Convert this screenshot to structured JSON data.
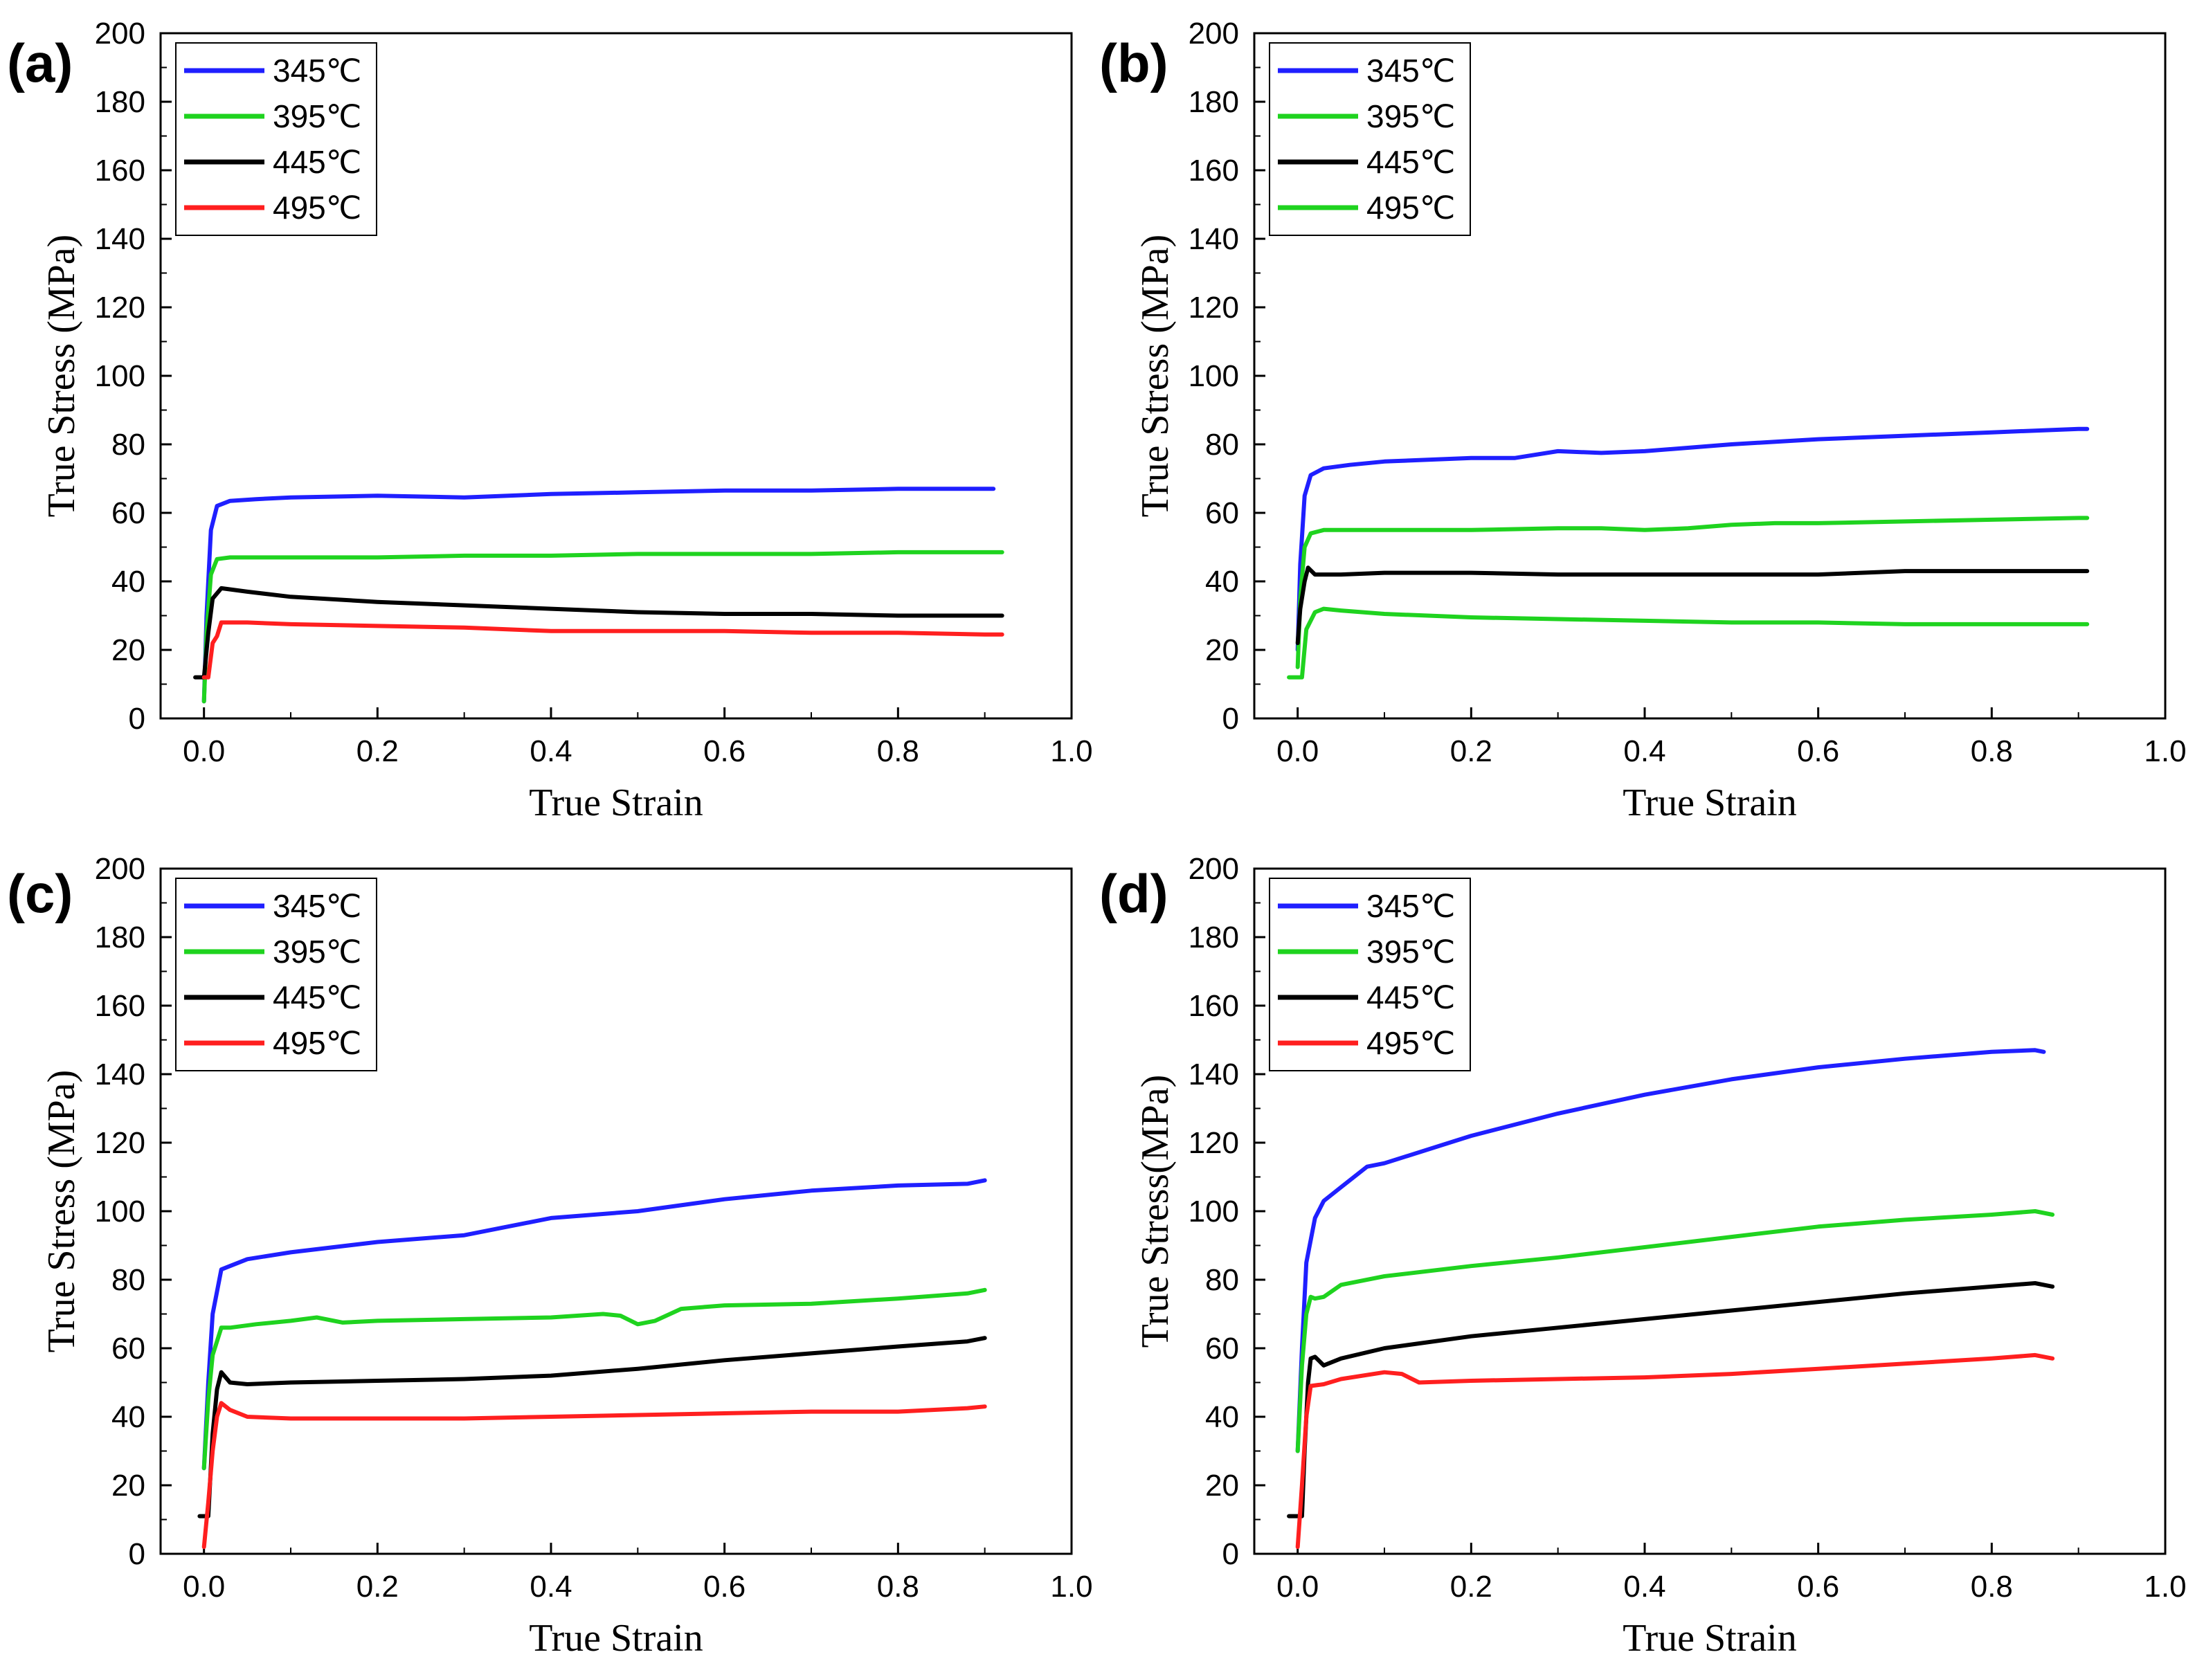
{
  "chart_data": [
    {
      "panel": "(a)",
      "type": "line",
      "xlabel": "True Strain",
      "ylabel": "True Stress (MPa)",
      "xlim": [
        -0.05,
        1.0
      ],
      "ylim": [
        0,
        200
      ],
      "xticks": [
        "0.0",
        "0.2",
        "0.4",
        "0.6",
        "0.8",
        "1.0"
      ],
      "yticks": [
        "0",
        "20",
        "40",
        "60",
        "80",
        "100",
        "120",
        "140",
        "160",
        "180",
        "200"
      ],
      "legend": "top-left",
      "series": [
        {
          "name": "345℃",
          "color": "#1f1fff",
          "x": [
            0,
            0.003,
            0.008,
            0.015,
            0.03,
            0.06,
            0.1,
            0.2,
            0.3,
            0.4,
            0.5,
            0.6,
            0.7,
            0.8,
            0.9,
            0.91
          ],
          "y": [
            5,
            30,
            55,
            62,
            63.5,
            64,
            64.5,
            65,
            64.5,
            65.5,
            66,
            66.5,
            66.5,
            67,
            67,
            67
          ]
        },
        {
          "name": "395℃",
          "color": "#1fd31f",
          "x": [
            0,
            0.003,
            0.008,
            0.015,
            0.03,
            0.06,
            0.1,
            0.2,
            0.3,
            0.4,
            0.5,
            0.6,
            0.7,
            0.8,
            0.9,
            0.92
          ],
          "y": [
            5,
            25,
            42,
            46.5,
            47,
            47,
            47,
            47,
            47.5,
            47.5,
            48,
            48,
            48,
            48.5,
            48.5,
            48.5
          ]
        },
        {
          "name": "445℃",
          "color": "#000000",
          "x": [
            -0.01,
            0,
            0.005,
            0.01,
            0.02,
            0.05,
            0.1,
            0.2,
            0.3,
            0.4,
            0.5,
            0.6,
            0.7,
            0.8,
            0.9,
            0.92
          ],
          "y": [
            12,
            12,
            25,
            35,
            38,
            37,
            35.5,
            34,
            33,
            32,
            31,
            30.5,
            30.5,
            30,
            30,
            30
          ]
        },
        {
          "name": "495℃",
          "color": "#ff1f1f",
          "x": [
            0,
            0.005,
            0.01,
            0.015,
            0.02,
            0.05,
            0.1,
            0.2,
            0.3,
            0.4,
            0.5,
            0.6,
            0.7,
            0.8,
            0.9,
            0.92
          ],
          "y": [
            12,
            12,
            22,
            24,
            28,
            28,
            27.5,
            27,
            26.5,
            25.5,
            25.5,
            25.5,
            25,
            25,
            24.5,
            24.5
          ]
        }
      ]
    },
    {
      "panel": "(b)",
      "type": "line",
      "xlabel": "True Strain",
      "ylabel": "True Stress (MPa)",
      "xlim": [
        -0.05,
        1.0
      ],
      "ylim": [
        0,
        200
      ],
      "xticks": [
        "0.0",
        "0.2",
        "0.4",
        "0.6",
        "0.8",
        "1.0"
      ],
      "yticks": [
        "0",
        "20",
        "40",
        "60",
        "80",
        "100",
        "120",
        "140",
        "160",
        "180",
        "200"
      ],
      "legend": "top-left",
      "series": [
        {
          "name": "345℃",
          "color": "#1f1fff",
          "x": [
            0,
            0.003,
            0.008,
            0.015,
            0.03,
            0.06,
            0.1,
            0.2,
            0.25,
            0.3,
            0.35,
            0.4,
            0.5,
            0.6,
            0.7,
            0.8,
            0.9,
            0.91
          ],
          "y": [
            20,
            45,
            65,
            71,
            73,
            74,
            75,
            76,
            76,
            78,
            77.5,
            78,
            80,
            81.5,
            82.5,
            83.5,
            84.5,
            84.5
          ]
        },
        {
          "name": "395℃",
          "color": "#1fd31f",
          "x": [
            0,
            0.003,
            0.008,
            0.015,
            0.03,
            0.06,
            0.1,
            0.2,
            0.3,
            0.35,
            0.4,
            0.45,
            0.5,
            0.55,
            0.6,
            0.7,
            0.8,
            0.9,
            0.91
          ],
          "y": [
            15,
            35,
            50,
            54,
            55,
            55,
            55,
            55,
            55.5,
            55.5,
            55,
            55.5,
            56.5,
            57,
            57,
            57.5,
            58,
            58.5,
            58.5
          ]
        },
        {
          "name": "445℃",
          "color": "#000000",
          "x": [
            0,
            0.003,
            0.008,
            0.012,
            0.02,
            0.05,
            0.1,
            0.2,
            0.3,
            0.4,
            0.5,
            0.6,
            0.7,
            0.8,
            0.9,
            0.91
          ],
          "y": [
            22,
            32,
            40,
            44,
            42,
            42,
            42.5,
            42.5,
            42,
            42,
            42,
            42,
            43,
            43,
            43,
            43
          ]
        },
        {
          "name": "495℃",
          "color": "#1fd31f",
          "x": [
            -0.01,
            0,
            0.005,
            0.01,
            0.02,
            0.03,
            0.05,
            0.1,
            0.2,
            0.3,
            0.4,
            0.5,
            0.6,
            0.7,
            0.8,
            0.9,
            0.91
          ],
          "y": [
            12,
            12,
            12,
            26,
            31,
            32,
            31.5,
            30.5,
            29.5,
            29,
            28.5,
            28,
            28,
            27.5,
            27.5,
            27.5,
            27.5
          ]
        }
      ]
    },
    {
      "panel": "(c)",
      "type": "line",
      "xlabel": "True Strain",
      "ylabel": "True Stress (MPa)",
      "xlim": [
        -0.05,
        1.0
      ],
      "ylim": [
        0,
        200
      ],
      "xticks": [
        "0.0",
        "0.2",
        "0.4",
        "0.6",
        "0.8",
        "1.0"
      ],
      "yticks": [
        "0",
        "20",
        "40",
        "60",
        "80",
        "100",
        "120",
        "140",
        "160",
        "180",
        "200"
      ],
      "legend": "top-left",
      "series": [
        {
          "name": "345℃",
          "color": "#1f1fff",
          "x": [
            0,
            0.005,
            0.01,
            0.02,
            0.03,
            0.05,
            0.1,
            0.2,
            0.3,
            0.4,
            0.5,
            0.6,
            0.7,
            0.8,
            0.88,
            0.9
          ],
          "y": [
            25,
            50,
            70,
            83,
            84,
            86,
            88,
            91,
            93,
            98,
            100,
            103.5,
            106,
            107.5,
            108,
            109
          ]
        },
        {
          "name": "395℃",
          "color": "#1fd31f",
          "x": [
            0,
            0.005,
            0.01,
            0.02,
            0.03,
            0.06,
            0.1,
            0.13,
            0.16,
            0.2,
            0.3,
            0.4,
            0.46,
            0.48,
            0.5,
            0.52,
            0.55,
            0.6,
            0.7,
            0.8,
            0.88,
            0.9
          ],
          "y": [
            25,
            45,
            58,
            66,
            66,
            67,
            68,
            69,
            67.5,
            68,
            68.5,
            69,
            70,
            69.5,
            67,
            68,
            71.5,
            72.5,
            73,
            74.5,
            76,
            77
          ]
        },
        {
          "name": "445℃",
          "color": "#000000",
          "x": [
            -0.005,
            0.005,
            0.01,
            0.015,
            0.02,
            0.03,
            0.05,
            0.1,
            0.2,
            0.3,
            0.4,
            0.5,
            0.6,
            0.7,
            0.8,
            0.88,
            0.9
          ],
          "y": [
            11,
            11,
            35,
            48,
            53,
            50,
            49.5,
            50,
            50.5,
            51,
            52,
            54,
            56.5,
            58.5,
            60.5,
            62,
            63
          ]
        },
        {
          "name": "495℃",
          "color": "#ff1f1f",
          "x": [
            0,
            0.005,
            0.01,
            0.015,
            0.02,
            0.03,
            0.05,
            0.1,
            0.2,
            0.3,
            0.4,
            0.5,
            0.6,
            0.7,
            0.8,
            0.88,
            0.9
          ],
          "y": [
            2,
            15,
            30,
            40,
            44,
            42,
            40,
            39.5,
            39.5,
            39.5,
            40,
            40.5,
            41,
            41.5,
            41.5,
            42.5,
            43
          ]
        }
      ]
    },
    {
      "panel": "(d)",
      "type": "line",
      "xlabel": "True Strain",
      "ylabel": "True Stress(MPa)",
      "xlim": [
        -0.05,
        1.0
      ],
      "ylim": [
        0,
        200
      ],
      "xticks": [
        "0.0",
        "0.2",
        "0.4",
        "0.6",
        "0.8",
        "1.0"
      ],
      "yticks": [
        "0",
        "20",
        "40",
        "60",
        "80",
        "100",
        "120",
        "140",
        "160",
        "180",
        "200"
      ],
      "legend": "top-left",
      "series": [
        {
          "name": "345℃",
          "color": "#1f1fff",
          "x": [
            0,
            0.005,
            0.01,
            0.02,
            0.03,
            0.05,
            0.08,
            0.1,
            0.2,
            0.3,
            0.4,
            0.5,
            0.6,
            0.7,
            0.8,
            0.85,
            0.86
          ],
          "y": [
            30,
            60,
            85,
            98,
            103,
            107,
            113,
            114,
            122,
            128.5,
            134,
            138.5,
            142,
            144.5,
            146.5,
            147,
            146.5
          ]
        },
        {
          "name": "395℃",
          "color": "#1fd31f",
          "x": [
            0,
            0.005,
            0.01,
            0.015,
            0.02,
            0.03,
            0.05,
            0.1,
            0.2,
            0.3,
            0.4,
            0.5,
            0.6,
            0.7,
            0.8,
            0.85,
            0.87
          ],
          "y": [
            30,
            55,
            70,
            75,
            74.5,
            75,
            78.5,
            81,
            84,
            86.5,
            89.5,
            92.5,
            95.5,
            97.5,
            99,
            100,
            99
          ]
        },
        {
          "name": "445℃",
          "color": "#000000",
          "x": [
            -0.01,
            0.005,
            0.008,
            0.012,
            0.015,
            0.02,
            0.03,
            0.05,
            0.1,
            0.2,
            0.3,
            0.4,
            0.5,
            0.6,
            0.7,
            0.8,
            0.85,
            0.87
          ],
          "y": [
            11,
            11,
            30,
            50,
            57,
            57.5,
            55,
            57,
            60,
            63.5,
            66,
            68.5,
            71,
            73.5,
            76,
            78,
            79,
            78
          ]
        },
        {
          "name": "495℃",
          "color": "#ff1f1f",
          "x": [
            0,
            0.005,
            0.01,
            0.015,
            0.03,
            0.05,
            0.1,
            0.12,
            0.14,
            0.2,
            0.3,
            0.4,
            0.5,
            0.6,
            0.7,
            0.8,
            0.85,
            0.87
          ],
          "y": [
            2,
            20,
            40,
            49,
            49.5,
            51,
            53,
            52.5,
            50,
            50.5,
            51,
            51.5,
            52.5,
            54,
            55.5,
            57,
            58,
            57
          ]
        }
      ]
    }
  ]
}
